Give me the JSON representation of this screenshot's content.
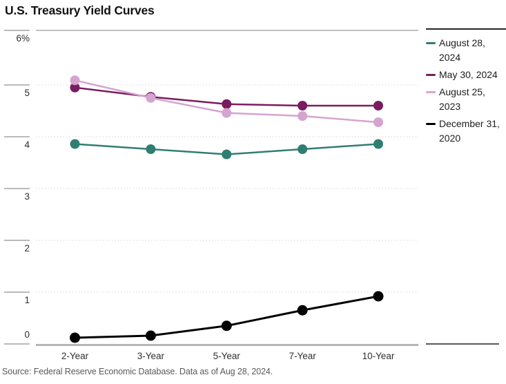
{
  "footer": {
    "source": "Source: Federal Reserve Economic Database. Data as of Aug 28, 2024."
  },
  "colors": {
    "grid_dotted": "#d6d6d6",
    "axis_line": "#b6b6b6",
    "tick_line": "#757575",
    "plot_top_border": "#9a9a9a",
    "legend_border": "#262626",
    "axis_label": "#2e2e2e",
    "footer_text": "#595959",
    "series_teal": "#2f7e72",
    "series_plum": "#7a1c5f",
    "series_orchid": "#d5a4cf",
    "series_black": "#000000"
  },
  "chart_data": {
    "type": "line",
    "title": "U.S. Treasury Yield Curves",
    "categories": [
      "2-Year",
      "3-Year",
      "5-Year",
      "7-Year",
      "10-Year"
    ],
    "y_ticks": [
      {
        "label": "6%",
        "value": 6
      },
      {
        "label": "5",
        "value": 5
      },
      {
        "label": "4",
        "value": 4
      },
      {
        "label": "3",
        "value": 3
      },
      {
        "label": "2",
        "value": 2
      },
      {
        "label": "1",
        "value": 1
      },
      {
        "label": "0",
        "value": 0
      }
    ],
    "ylim": [
      0,
      6.05
    ],
    "grid": "horizontal-dotted",
    "legend_position": "right",
    "series": [
      {
        "name": "August 28, 2024",
        "label_lines": [
          "August 28,",
          "2024"
        ],
        "color": "#2f7e72",
        "values": [
          3.86,
          3.76,
          3.66,
          3.76,
          3.86
        ]
      },
      {
        "name": "May 30, 2024",
        "label_lines": [
          "May 30, 2024"
        ],
        "color": "#7a1c5f",
        "values": [
          4.95,
          4.77,
          4.63,
          4.6,
          4.6
        ]
      },
      {
        "name": "August 25, 2023",
        "label_lines": [
          "August 25,",
          "2023"
        ],
        "color": "#d5a4cf",
        "values": [
          5.09,
          4.75,
          4.46,
          4.4,
          4.28
        ]
      },
      {
        "name": "December 31, 2020",
        "label_lines": [
          "December 31,",
          "2020"
        ],
        "color": "#000000",
        "values": [
          0.12,
          0.16,
          0.35,
          0.65,
          0.92
        ]
      }
    ]
  }
}
